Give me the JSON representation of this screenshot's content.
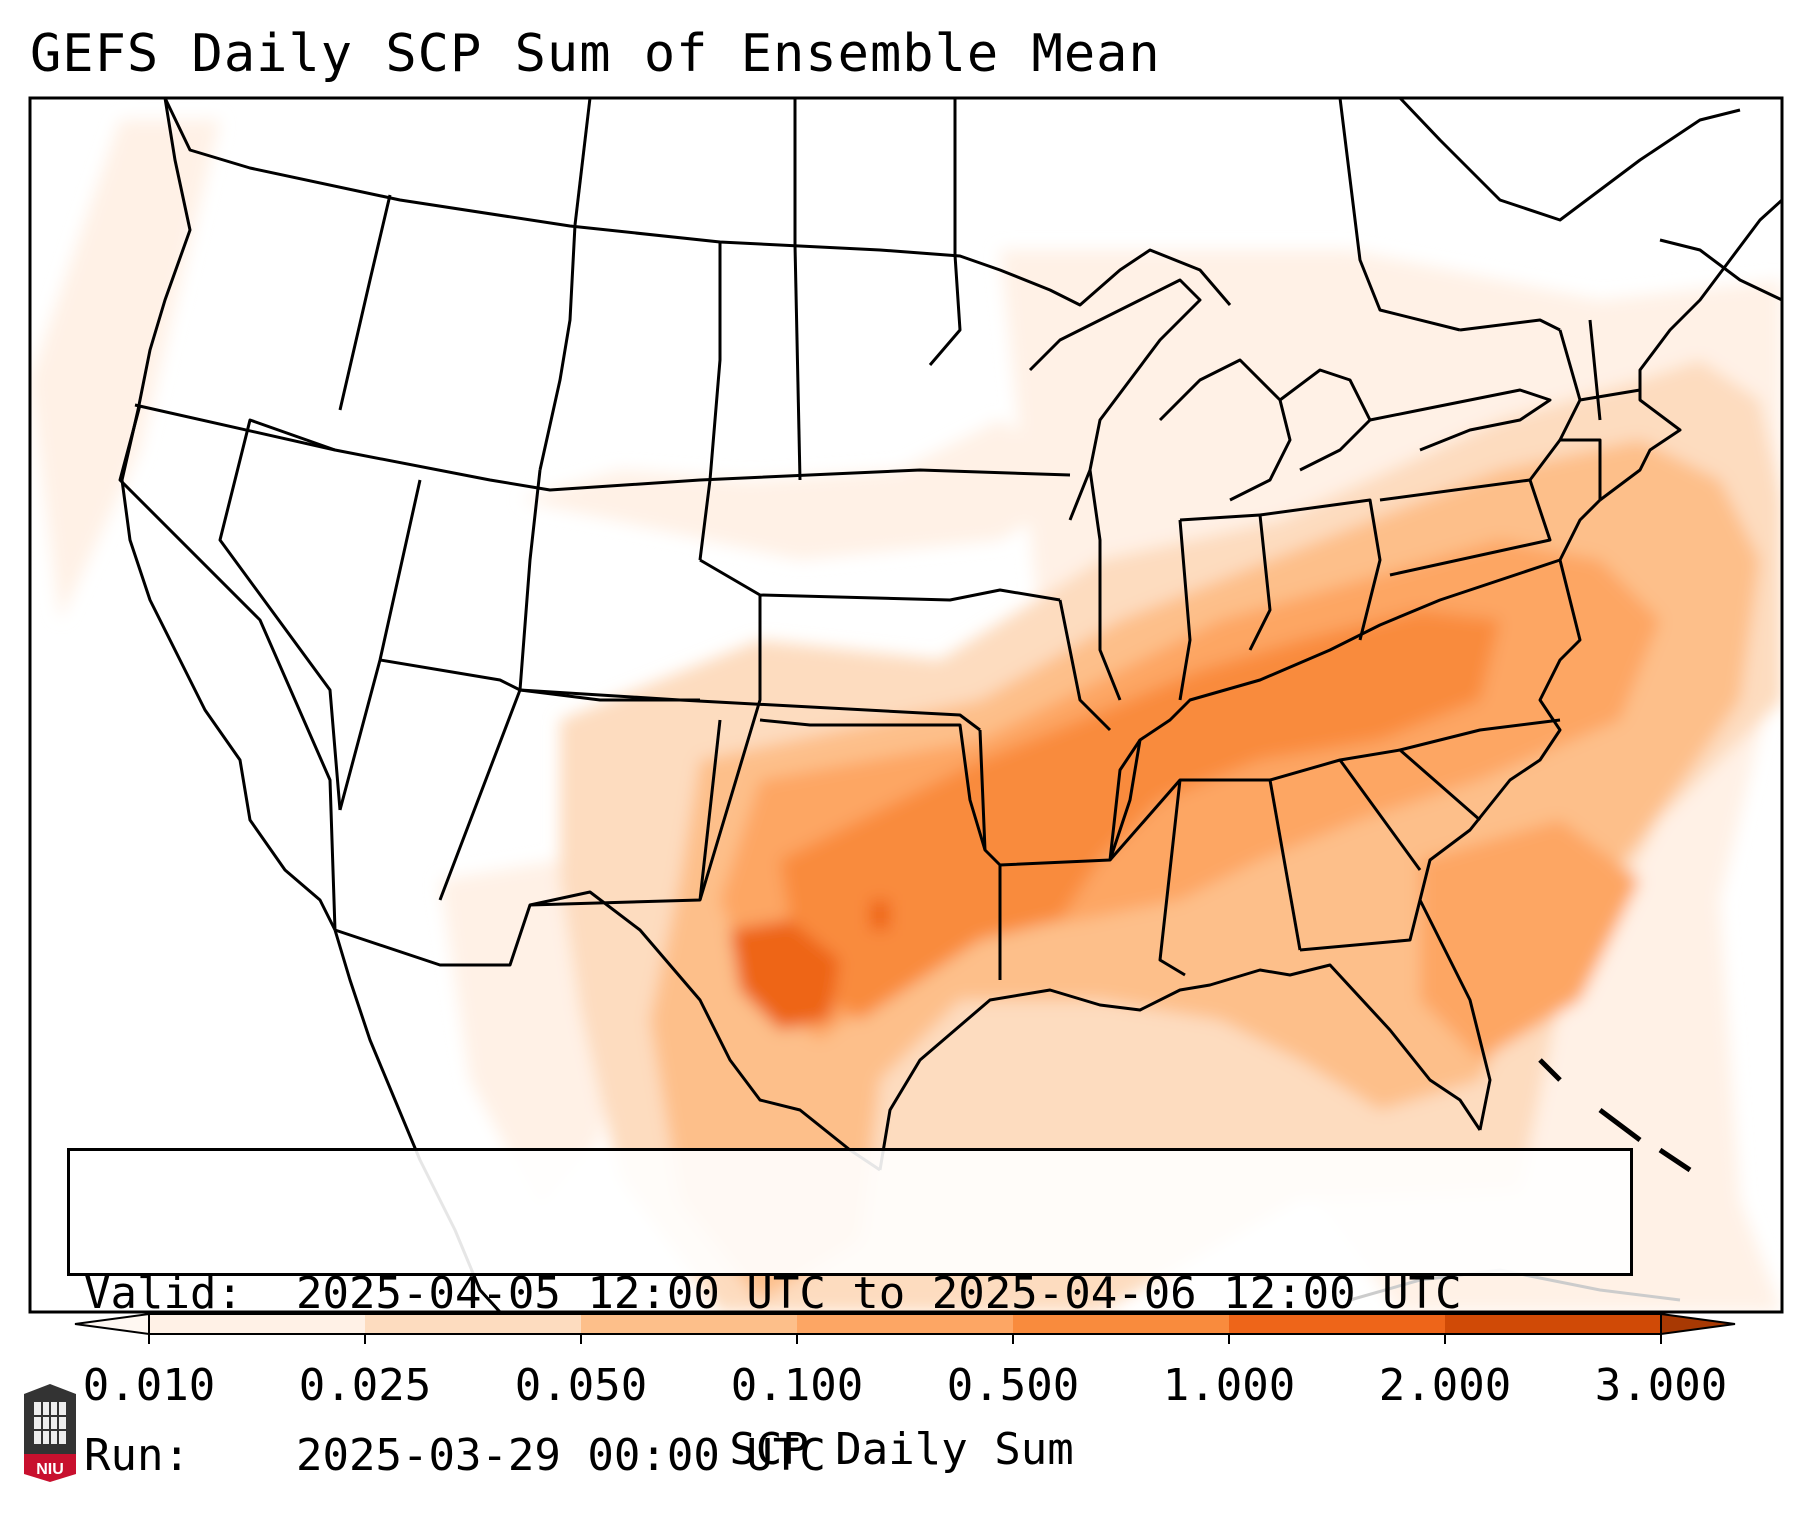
{
  "title": "GEFS Daily SCP Sum of Ensemble Mean",
  "info": {
    "valid_key": "Valid:",
    "valid_value": "2025-04-05 12:00 UTC to 2025-04-06 12:00 UTC",
    "run_key": "Run:",
    "run_value": "2025-03-29 00:00 UTC"
  },
  "colorbar": {
    "label": "SCP Daily Sum",
    "ticks": [
      "0.010",
      "0.025",
      "0.050",
      "0.100",
      "0.500",
      "1.000",
      "2.000",
      "3.000"
    ],
    "colors": [
      "#fff1e6",
      "#fddcbf",
      "#fdbf8a",
      "#fda664",
      "#f98b3d",
      "#ee6519",
      "#d04a06",
      "#a83903"
    ],
    "extend": "both"
  },
  "logo": {
    "text": "NIU",
    "color": "#c8102e"
  },
  "map": {
    "region": "Continental United States",
    "projection": "Lambert Conformal",
    "field": "SCP daily sum",
    "max_region": "Texas / southern Plains into Tennessee Valley"
  }
}
